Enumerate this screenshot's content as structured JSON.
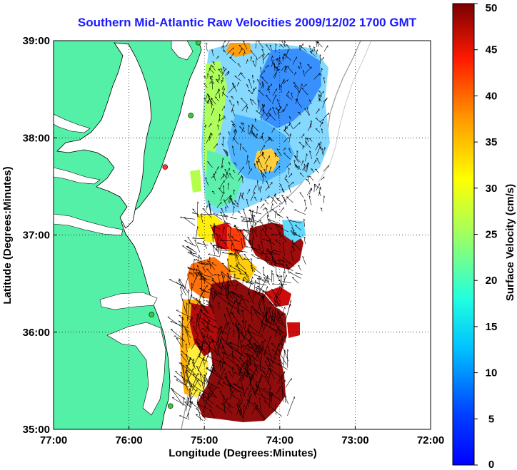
{
  "map": {
    "title": "Southern Mid-Atlantic Raw Velocities 2009/12/02 1700 GMT",
    "xlabel": "Longitude (Degrees:Minutes)",
    "ylabel": "Latitude (Degrees:Minutes)",
    "lon_ticks": [
      "77:00",
      "76:00",
      "75:00",
      "74:00",
      "73:00",
      "72:00"
    ],
    "lat_ticks": [
      "39:00",
      "38:00",
      "37:00",
      "36:00",
      "35:00"
    ],
    "lon_range": [
      -77,
      -72
    ],
    "lat_range": [
      35,
      39
    ],
    "grid": true,
    "land_color": "#55f0a8",
    "water_color": "#ffffff"
  },
  "colorbar": {
    "label": "Surface Velocity (cm/s)",
    "ticks": [
      "0",
      "5",
      "10",
      "15",
      "20",
      "25",
      "30",
      "35",
      "40",
      "45",
      "50"
    ],
    "range": [
      0,
      50
    ],
    "colormap": "jet"
  },
  "stations": [
    {
      "lon": -75.08,
      "lat": 38.98,
      "color": "#33cc33"
    },
    {
      "lon": -75.18,
      "lat": 38.23,
      "color": "#33cc33"
    },
    {
      "lon": -75.52,
      "lat": 37.7,
      "color": "#ff3333"
    },
    {
      "lon": -75.7,
      "lat": 36.18,
      "color": "#33cc33"
    },
    {
      "lon": -75.45,
      "lat": 35.24,
      "color": "#33cc33"
    }
  ]
}
